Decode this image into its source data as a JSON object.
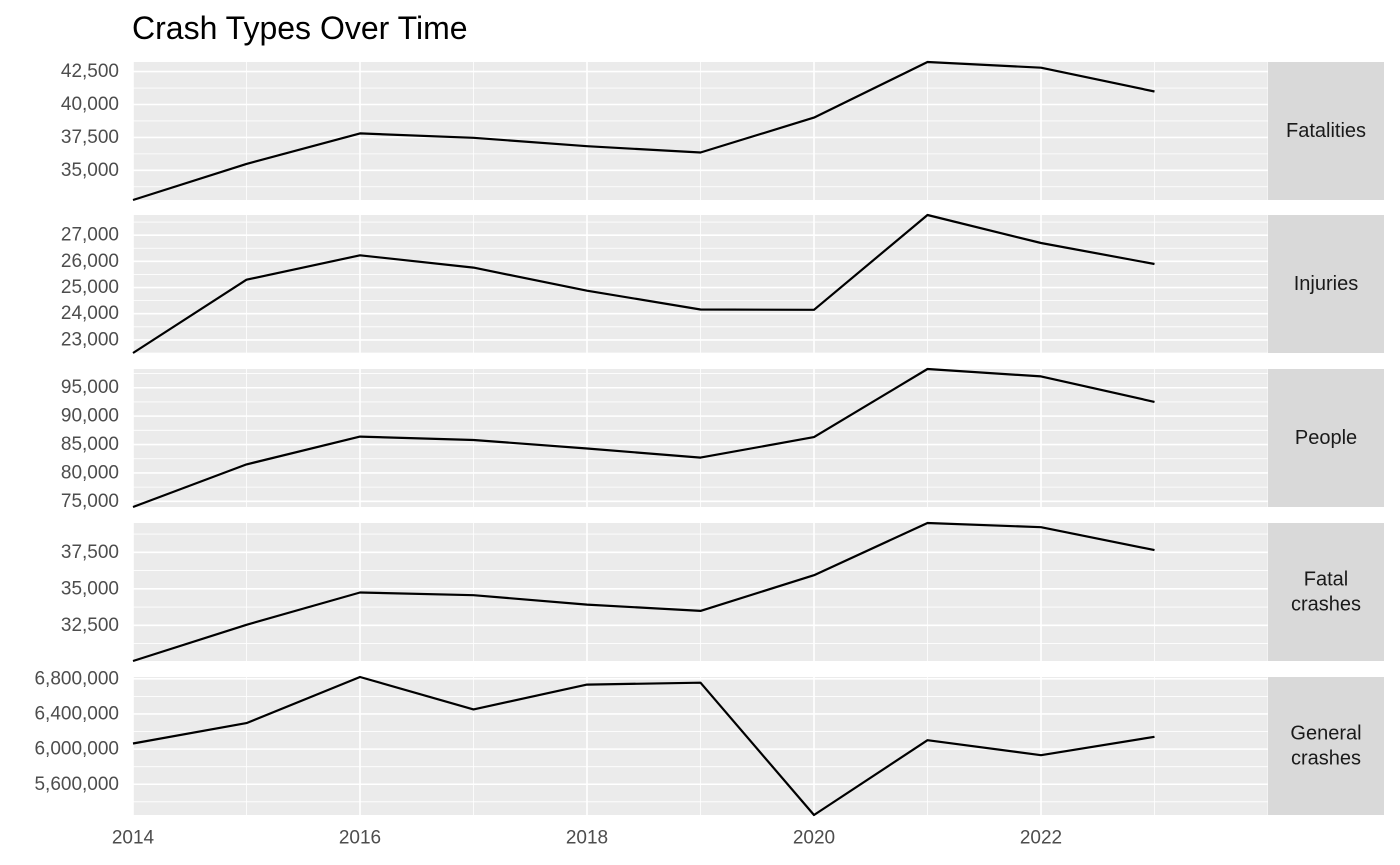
{
  "chart_data": {
    "type": "line",
    "title": "Crash Types Over Time",
    "xlabel": "",
    "ylabel": "",
    "x": [
      2014,
      2015,
      2016,
      2017,
      2018,
      2019,
      2020,
      2021,
      2022,
      2023
    ],
    "xlim": [
      2014,
      2024
    ],
    "x_ticks": [
      2014,
      2016,
      2018,
      2020,
      2022
    ],
    "x_tick_labels": [
      "2014",
      "2016",
      "2018",
      "2020",
      "2022"
    ],
    "facets": "rows, free y scales",
    "grid": true,
    "line_color": "#000000",
    "panel_color": "#ebebeb",
    "strip_color": "#d9d9d9",
    "series": [
      {
        "strip_lines": [
          "Fatalities"
        ],
        "values": [
          32744,
          35484,
          37806,
          37473,
          36835,
          36355,
          39007,
          43230,
          42795,
          40990
        ],
        "ylim": [
          32744,
          43230
        ],
        "y_ticks": [
          35000,
          37500,
          40000,
          42500
        ],
        "y_tick_labels": [
          "35,000",
          "37,500",
          "40,000",
          "42,500"
        ]
      },
      {
        "strip_lines": [
          "Injuries"
        ],
        "values": [
          22500,
          25300,
          26230,
          25760,
          24880,
          24160,
          24150,
          27770,
          26700,
          25900
        ],
        "ylim": [
          22500,
          27770
        ],
        "y_ticks": [
          23000,
          24000,
          25000,
          26000,
          27000
        ],
        "y_tick_labels": [
          "23,000",
          "24,000",
          "25,000",
          "26,000",
          "27,000"
        ]
      },
      {
        "strip_lines": [
          "People"
        ],
        "values": [
          74000,
          81500,
          86400,
          85800,
          84300,
          82700,
          86300,
          98300,
          97000,
          92500
        ],
        "ylim": [
          74000,
          98300
        ],
        "y_ticks": [
          75000,
          80000,
          85000,
          90000,
          95000
        ],
        "y_tick_labels": [
          "75,000",
          "80,000",
          "85,000",
          "90,000",
          "95,000"
        ]
      },
      {
        "strip_lines": [
          "Fatal",
          "crashes"
        ],
        "values": [
          30056,
          32538,
          34748,
          34560,
          33919,
          33487,
          35935,
          39508,
          39221,
          37654
        ],
        "ylim": [
          30056,
          39508
        ],
        "y_ticks": [
          32500,
          35000,
          37500
        ],
        "y_tick_labels": [
          "32,500",
          "35,000",
          "37,500"
        ]
      },
      {
        "strip_lines": [
          "General",
          "crashes"
        ],
        "values": [
          6064000,
          6296000,
          6821000,
          6452000,
          6735000,
          6756000,
          5250000,
          6102000,
          5931000,
          6140000
        ],
        "ylim": [
          5250000,
          6821000
        ],
        "y_ticks": [
          5600000,
          6000000,
          6400000,
          6800000
        ],
        "y_tick_labels": [
          "5,600,000",
          "6,000,000",
          "6,400,000",
          "6,800,000"
        ]
      }
    ]
  }
}
